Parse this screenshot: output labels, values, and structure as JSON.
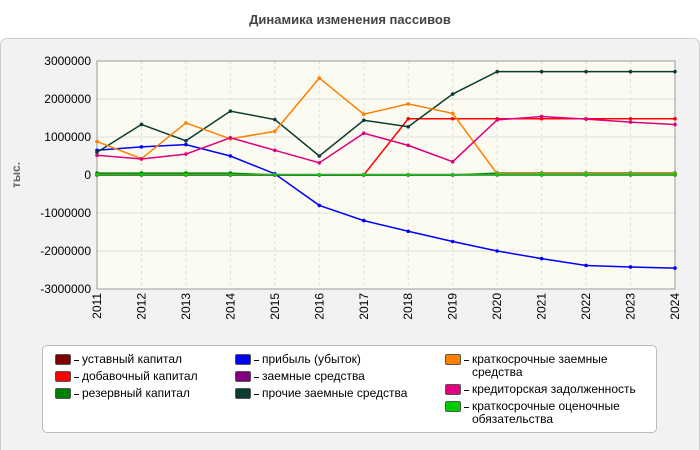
{
  "chart_data": {
    "type": "line",
    "title": "Динамика изменения пассивов",
    "y_label": "тыс.",
    "categories": [
      "2011",
      "2012",
      "2013",
      "2014",
      "2015",
      "2016",
      "2017",
      "2018",
      "2019",
      "2020",
      "2021",
      "2022",
      "2023",
      "2024"
    ],
    "ylim": [
      -3000000,
      3000000
    ],
    "yticks": [
      -3000000,
      -2000000,
      -1000000,
      0,
      1000000,
      2000000,
      3000000
    ],
    "grid": true,
    "series": [
      {
        "name": "уставный капитал",
        "color": "#800000",
        "values": [
          10000,
          10000,
          10000,
          10000,
          10000,
          10000,
          10000,
          10000,
          10000,
          10000,
          10000,
          10000,
          10000,
          10000
        ]
      },
      {
        "name": "добавочный капитал",
        "color": "#ff0000",
        "values": [
          0,
          0,
          0,
          0,
          0,
          0,
          0,
          1480000,
          1480000,
          1480000,
          1480000,
          1480000,
          1480000,
          1480000
        ]
      },
      {
        "name": "резервный капитал",
        "color": "#008000",
        "values": [
          50000,
          50000,
          50000,
          50000,
          0,
          0,
          0,
          0,
          0,
          50000,
          50000,
          50000,
          50000,
          50000
        ]
      },
      {
        "name": "прибыль (убыток)",
        "color": "#0000ff",
        "values": [
          650000,
          740000,
          800000,
          500000,
          30000,
          -800000,
          -1200000,
          -1480000,
          -1750000,
          -2000000,
          -2200000,
          -2380000,
          -2420000,
          -2450000
        ]
      },
      {
        "name": "заемные средства",
        "color": "#800080",
        "values": [
          0,
          0,
          0,
          0,
          0,
          0,
          0,
          0,
          0,
          0,
          0,
          0,
          0,
          0
        ]
      },
      {
        "name": "прочие заемные средства",
        "color": "#0b3b32",
        "values": [
          600000,
          1330000,
          900000,
          1680000,
          1460000,
          500000,
          1440000,
          1270000,
          2130000,
          2720000,
          2720000,
          2720000,
          2720000,
          2720000
        ]
      },
      {
        "name": "краткосрочные заемные средства",
        "color": "#ff8000",
        "values": [
          880000,
          430000,
          1370000,
          950000,
          1150000,
          2550000,
          1600000,
          1870000,
          1620000,
          30000,
          30000,
          30000,
          30000,
          30000
        ]
      },
      {
        "name": "кредиторская задолженность",
        "color": "#e0007f",
        "values": [
          520000,
          420000,
          550000,
          980000,
          650000,
          320000,
          1100000,
          780000,
          350000,
          1450000,
          1540000,
          1470000,
          1390000,
          1330000
        ]
      },
      {
        "name": "краткосрочные оценочные обязательства",
        "color": "#00cc00",
        "values": [
          10000,
          10000,
          10000,
          10000,
          10000,
          10000,
          10000,
          10000,
          10000,
          10000,
          10000,
          10000,
          10000,
          10000
        ]
      }
    ]
  }
}
